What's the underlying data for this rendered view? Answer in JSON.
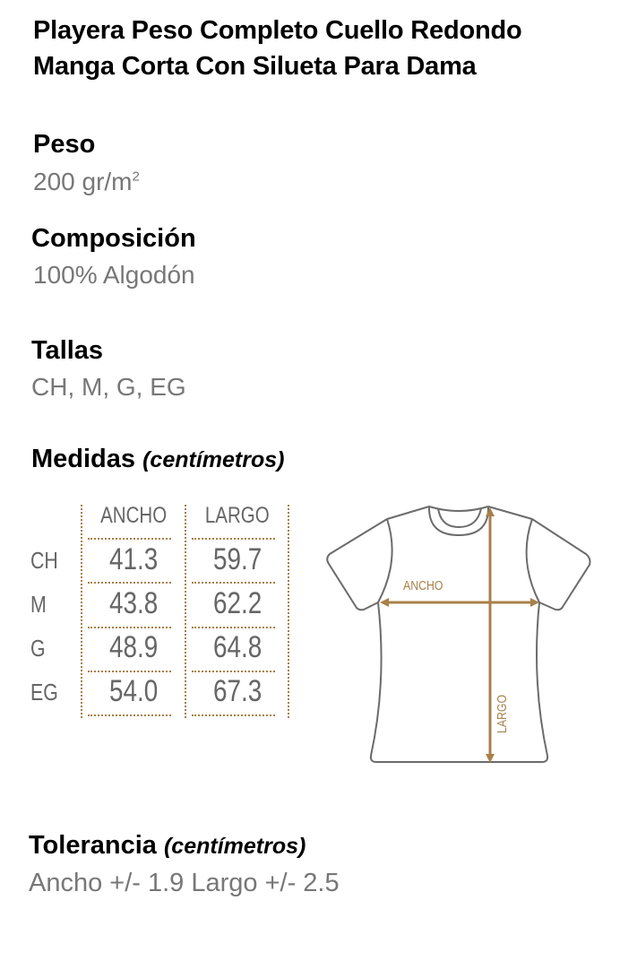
{
  "title_line1": "Playera Peso Completo Cuello Redondo",
  "title_line2": "Manga Corta Con Silueta Para Dama",
  "peso": {
    "label": "Peso",
    "value": "200 gr/m",
    "sup": "2"
  },
  "composicion": {
    "label": "Composición",
    "value": "100% Algodón"
  },
  "tallas": {
    "label": "Tallas",
    "value": "CH, M, G, EG"
  },
  "medidas": {
    "label": "Medidas",
    "unit": "(centímetros)",
    "columns": [
      "ANCHO",
      "LARGO"
    ],
    "rows": [
      {
        "size": "CH",
        "ancho": "41.3",
        "largo": "59.7"
      },
      {
        "size": "M",
        "ancho": "43.8",
        "largo": "62.2"
      },
      {
        "size": "G",
        "ancho": "48.9",
        "largo": "64.8"
      },
      {
        "size": "EG",
        "ancho": "54.0",
        "largo": "67.3"
      }
    ]
  },
  "diagram": {
    "ancho_label": "ANCHO",
    "largo_label": "LARGO",
    "accent": "#a8804a",
    "outline": "#6b6b6b"
  },
  "tolerancia": {
    "label": "Tolerancia",
    "unit": "(centímetros)",
    "value": "Ancho +/- 1.9 Largo +/- 2.5"
  }
}
